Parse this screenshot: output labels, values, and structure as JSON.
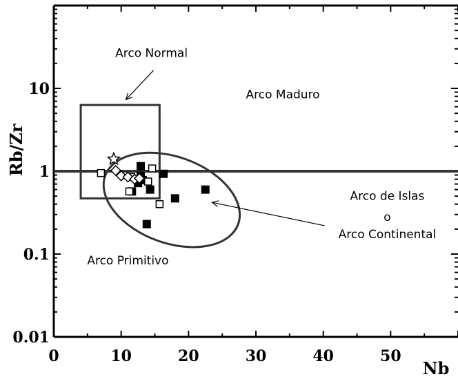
{
  "chart_data": {
    "type": "scatter",
    "title": "",
    "xlabel": "Nb",
    "ylabel": "Rb/Zr",
    "xlim": [
      0,
      60
    ],
    "ylim": [
      0.01,
      100
    ],
    "yscale": "log",
    "grid": false,
    "x_ticks": [
      {
        "value": 0,
        "label": "0"
      },
      {
        "value": 10,
        "label": "10"
      },
      {
        "value": 20,
        "label": "20"
      },
      {
        "value": 30,
        "label": "30"
      },
      {
        "value": 40,
        "label": "40"
      },
      {
        "value": 50,
        "label": "50"
      }
    ],
    "y_ticks": [
      {
        "value": 0.01,
        "label": "0.01"
      },
      {
        "value": 0.1,
        "label": "0.1"
      },
      {
        "value": 1,
        "label": "1"
      },
      {
        "value": 10,
        "label": "10"
      }
    ],
    "reference_line": {
      "y": 1
    },
    "field_box": {
      "x": [
        4,
        15.7
      ],
      "y": [
        0.47,
        6.3
      ]
    },
    "field_ellipse": {
      "cx": 17.5,
      "cy": 0.45,
      "rx_data": 10.5,
      "ry_decades": 0.52,
      "rotation_deg": 20
    },
    "region_labels": [
      {
        "text": "Arco Normal",
        "x": 14.5,
        "y": 24
      },
      {
        "text": "Arco Maduro",
        "x": 34,
        "y": 7.6
      },
      {
        "text": "Arco de Islas",
        "x": 49.5,
        "y": 0.45
      },
      {
        "text": "o",
        "x": 49.5,
        "y": 0.25
      },
      {
        "text": "Arco Continental",
        "x": 49.5,
        "y": 0.155
      },
      {
        "text": "Arco Primitivo",
        "x": 11,
        "y": 0.075
      }
    ],
    "arrows": [
      {
        "from": [
          14.8,
          16.5
        ],
        "to": [
          10.7,
          7.3
        ]
      },
      {
        "from": [
          40.2,
          0.22
        ],
        "to": [
          23.5,
          0.42
        ]
      }
    ],
    "series": [
      {
        "marker": "filled-square",
        "points": [
          [
            11.6,
            0.57
          ],
          [
            12.5,
            0.72
          ],
          [
            12.9,
            1.15
          ],
          [
            13.2,
            0.78
          ],
          [
            13.8,
            0.23
          ],
          [
            14.3,
            0.6
          ],
          [
            16.3,
            0.93
          ],
          [
            18,
            0.47
          ],
          [
            22.5,
            0.6
          ],
          [
            12.9,
            0.88
          ]
        ]
      },
      {
        "marker": "open-square",
        "points": [
          [
            7,
            0.95
          ],
          [
            11.2,
            0.57
          ],
          [
            14,
            0.75
          ],
          [
            14.6,
            1.08
          ],
          [
            15.7,
            0.4
          ],
          [
            11.5,
            0.85
          ]
        ]
      },
      {
        "marker": "open-diamond",
        "points": [
          [
            9.2,
            1.02
          ],
          [
            10,
            0.88
          ],
          [
            11,
            0.85
          ],
          [
            12,
            0.8
          ],
          [
            12.7,
            0.82
          ]
        ]
      },
      {
        "marker": "open-star",
        "points": [
          [
            8.9,
            1.4
          ]
        ]
      }
    ]
  }
}
